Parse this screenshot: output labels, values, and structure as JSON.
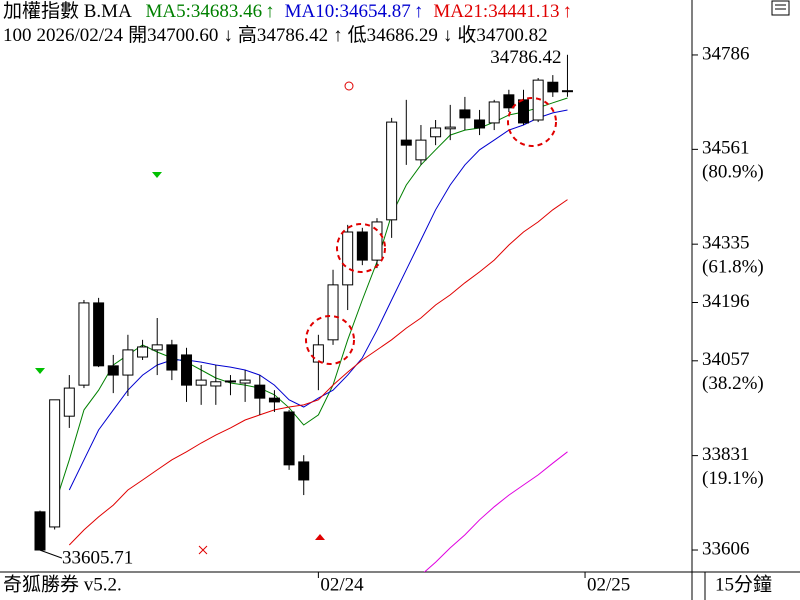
{
  "header": {
    "title": "加權指數 B.MA",
    "ma": [
      {
        "label": "MA5:34683.46",
        "arrow": "↑",
        "color": "#008000"
      },
      {
        "label": "MA10:34654.87",
        "arrow": "↑",
        "color": "#0000d0"
      },
      {
        "label": "MA21:34441.13",
        "arrow": "↑",
        "color": "#e00000"
      }
    ],
    "quote": [
      "100",
      "2026/02/24",
      "開34700.60",
      "↓",
      "高34786.42",
      "↑",
      "低34686.29",
      "↓",
      "收34700.82"
    ]
  },
  "footer": {
    "brand": "奇狐勝券 v5.2.",
    "period": "15分鐘"
  },
  "chart_data": {
    "type": "candlestick",
    "x": [
      0,
      1,
      2,
      3,
      4,
      5,
      6,
      7,
      8,
      9,
      10,
      11,
      12,
      13,
      14,
      15,
      16,
      17,
      18,
      19,
      20,
      21,
      22,
      23,
      24,
      25,
      26,
      27,
      28,
      29,
      30,
      31,
      32,
      33,
      34,
      35,
      36
    ],
    "open": [
      33697,
      33661,
      33925,
      33999,
      34195,
      34045,
      34023,
      34066,
      34083,
      34095,
      34071,
      33999,
      33997,
      34007,
      34004,
      33999,
      33968,
      33935,
      33816,
      34054,
      34107,
      34238,
      34364,
      34297,
      34393,
      34583,
      34536,
      34591,
      34610,
      34655,
      34631,
      34624,
      34691,
      34679,
      34631,
      34721,
      34700.6
    ],
    "high": [
      33700,
      33964,
      34023,
      34202,
      34207,
      34071,
      34119,
      34107,
      34159,
      34107,
      34088,
      34047,
      34047,
      34023,
      34035,
      34023,
      33987,
      33940,
      33832,
      34119,
      34274,
      34381,
      34374,
      34397,
      34636,
      34679,
      34619,
      34631,
      34667,
      34686,
      34655,
      34679,
      34703,
      34703,
      34731,
      34738,
      34786.42
    ],
    "low": [
      33605.71,
      33655,
      33897,
      33992,
      34042,
      33980,
      33973,
      34059,
      34023,
      34011,
      33959,
      33952,
      33952,
      33975,
      33959,
      33928,
      33935,
      33797,
      33737,
      33987,
      34095,
      34178,
      34285,
      34278,
      34350,
      34524,
      34524,
      34571,
      34583,
      34607,
      34595,
      34607,
      34650,
      34619,
      34626,
      34686,
      34686.29
    ],
    "close": [
      33606,
      33964,
      33992,
      34195,
      34045,
      34023,
      34083,
      34090,
      34095,
      34035,
      33999,
      34011,
      34007,
      34009,
      34011,
      33968,
      33959,
      33809,
      33773,
      34095,
      34238,
      34364,
      34297,
      34388,
      34626,
      34571,
      34583,
      34612,
      34614,
      34636,
      34612,
      34674,
      34660,
      34624,
      34726,
      34698,
      34700.82
    ],
    "series": [
      {
        "color": "#008000",
        "values": [
          null,
          33713,
          33821,
          33940,
          33987,
          34047,
          34071,
          34095,
          34078,
          34064,
          34054,
          34035,
          34016,
          34004,
          33999,
          33992,
          33976,
          33945,
          33904,
          33928,
          33999,
          34107,
          34202,
          34293,
          34405,
          34476,
          34524,
          34560,
          34595,
          34607,
          34612,
          34626,
          34643,
          34650,
          34660,
          34672,
          34683.46
        ]
      },
      {
        "color": "#0000d0",
        "values": [
          null,
          null,
          33749,
          33821,
          33892,
          33940,
          33987,
          34023,
          34047,
          34059,
          34059,
          34054,
          34047,
          34042,
          34035,
          34023,
          33999,
          33964,
          33947,
          33968,
          33987,
          34023,
          34064,
          34130,
          34202,
          34274,
          34345,
          34417,
          34476,
          34524,
          34560,
          34583,
          34607,
          34619,
          34636,
          34648,
          34654.87
        ]
      },
      {
        "color": "#e00000",
        "values": [
          null,
          null,
          33618,
          33654,
          33685,
          33713,
          33749,
          33773,
          33797,
          33821,
          33840,
          33861,
          33880,
          33897,
          33916,
          33928,
          33940,
          33947,
          33952,
          33964,
          33999,
          34030,
          34059,
          34083,
          34107,
          34135,
          34159,
          34190,
          34214,
          34243,
          34269,
          34297,
          34333,
          34364,
          34388,
          34417,
          34441.13
        ]
      },
      {
        "color": "#e000e0",
        "values": [
          null,
          null,
          null,
          null,
          null,
          null,
          null,
          null,
          null,
          null,
          null,
          null,
          null,
          null,
          null,
          null,
          null,
          null,
          null,
          null,
          null,
          null,
          null,
          null,
          null,
          null,
          33546,
          33577,
          33611,
          33642,
          33678,
          33709,
          33737,
          33761,
          33785,
          33813,
          33840
        ]
      }
    ],
    "xlim": [
      -2.73,
      44.5
    ],
    "xticks": [
      {
        "value": 19,
        "label": "02/24"
      },
      {
        "value": 37.2,
        "label": "02/25"
      }
    ],
    "ylim": [
      33553.6,
      34917
    ],
    "yticks": [
      34786,
      34561,
      34335,
      34196,
      34057,
      33831,
      33606
    ],
    "fib_labels": [
      {
        "value": 34561,
        "label": "(80.9%)"
      },
      {
        "value": 34335,
        "label": "(61.8%)"
      },
      {
        "value": 34057,
        "label": "(38.2%)"
      },
      {
        "value": 33831,
        "label": "(19.1%)"
      }
    ],
    "annotations": [
      {
        "value": 34786.42,
        "index": 36
      },
      {
        "value": 33605.71,
        "index": 0
      }
    ]
  }
}
